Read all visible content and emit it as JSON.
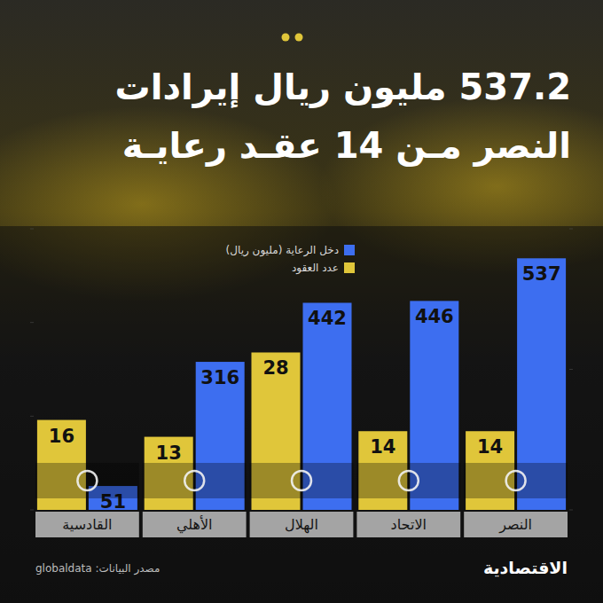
{
  "chart_data": {
    "type": "bar",
    "title": "537.2 مليون ريال إيرادات\nالنصر مـن 14 عقـد رعايـة",
    "categories": [
      "النصر",
      "الاتحاد",
      "الهلال",
      "الأهلي",
      "القادسية"
    ],
    "series": [
      {
        "name": "دخل الرعاية (مليون ريال)",
        "color": "#3d6ef0",
        "values": [
          537,
          446,
          442,
          316,
          51
        ]
      },
      {
        "name": "عدد العقود",
        "color": "#e0c63a",
        "values": [
          14,
          14,
          28,
          13,
          16
        ],
        "axis": "y2"
      }
    ],
    "ylim": [
      0,
      600
    ],
    "yticks": [
      0,
      200,
      400,
      600
    ],
    "y2lim": [
      0,
      50
    ],
    "y2ticks": [
      0,
      25,
      50
    ],
    "data_labels": true,
    "grid": false,
    "tick_labels": false,
    "legend": "top",
    "source": "مصدر البيانات: globaldata",
    "publisher": "الاقتصادية"
  }
}
